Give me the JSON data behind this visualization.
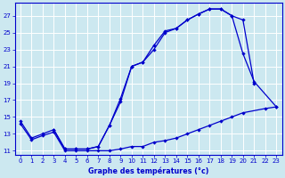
{
  "title": "Graphe des températures (°c)",
  "bg_color": "#cce8f0",
  "grid_color": "#ffffff",
  "line_color": "#0000cc",
  "xlim": [
    -0.5,
    23.5
  ],
  "ylim": [
    10.5,
    28.5
  ],
  "yticks": [
    11,
    13,
    15,
    17,
    19,
    21,
    23,
    25,
    27
  ],
  "xticks": [
    0,
    1,
    2,
    3,
    4,
    5,
    6,
    7,
    8,
    9,
    10,
    11,
    12,
    13,
    14,
    15,
    16,
    17,
    18,
    19,
    20,
    21,
    22,
    23
  ],
  "curve1": {
    "x": [
      0,
      1,
      2,
      3,
      4,
      5,
      6,
      7,
      8,
      9,
      10,
      11,
      12,
      13,
      14,
      15,
      16,
      17,
      18,
      19,
      20,
      21,
      23
    ],
    "y": [
      14.5,
      12.5,
      13.0,
      13.5,
      11.2,
      11.2,
      11.2,
      11.5,
      14.0,
      16.8,
      21.0,
      21.5,
      23.0,
      25.0,
      25.5,
      26.5,
      27.2,
      27.8,
      27.8,
      27.0,
      22.5,
      19.2,
      16.2
    ]
  },
  "curve2": {
    "x": [
      3,
      4,
      5,
      6,
      7,
      8,
      9,
      10,
      11,
      12,
      13,
      14,
      15,
      16,
      17,
      18,
      19,
      20,
      21
    ],
    "y": [
      13.5,
      11.2,
      11.2,
      11.2,
      11.5,
      14.0,
      17.2,
      21.0,
      21.5,
      23.5,
      25.2,
      25.5,
      26.5,
      27.2,
      27.8,
      27.8,
      27.0,
      26.5,
      19.0
    ]
  },
  "curve3": {
    "x": [
      0,
      1,
      2,
      3,
      4,
      5,
      6,
      7,
      8,
      9,
      10,
      11,
      12,
      13,
      14,
      15,
      16,
      17,
      18,
      19,
      20,
      22,
      23
    ],
    "y": [
      14.2,
      12.3,
      12.8,
      13.2,
      11.0,
      11.0,
      11.0,
      11.0,
      11.0,
      11.2,
      11.5,
      11.5,
      12.0,
      12.2,
      12.5,
      13.0,
      13.5,
      14.0,
      14.5,
      15.0,
      15.5,
      16.0,
      16.2
    ]
  }
}
